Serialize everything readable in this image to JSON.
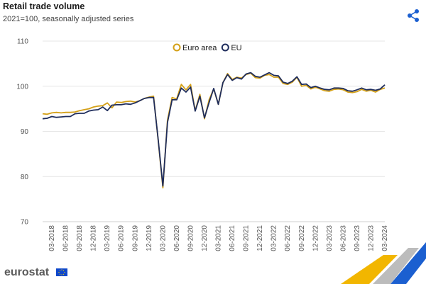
{
  "header": {
    "title": "Retail trade volume",
    "subtitle": "2021=100, seasonally adjusted series"
  },
  "brand": {
    "name": "eurostat"
  },
  "icons": {
    "share": "share-icon",
    "flag": "eu-flag-icon"
  },
  "chart_data": {
    "type": "line",
    "ylim": [
      70,
      110
    ],
    "yticks": [
      70,
      80,
      90,
      100,
      110
    ],
    "xticks": [
      "03-2018",
      "06-2018",
      "09-2018",
      "12-2018",
      "03-2019",
      "06-2019",
      "09-2019",
      "12-2019",
      "03-2020",
      "06-2020",
      "09-2020",
      "12-2020",
      "03-2021",
      "06-2021",
      "09-2021",
      "12-2021",
      "03-2022",
      "06-2022",
      "09-2022",
      "12-2022",
      "03-2023",
      "06-2023",
      "09-2023",
      "12-2023",
      "03-2024"
    ],
    "x": [
      "01-2018",
      "02-2018",
      "03-2018",
      "04-2018",
      "05-2018",
      "06-2018",
      "07-2018",
      "08-2018",
      "09-2018",
      "10-2018",
      "11-2018",
      "12-2018",
      "01-2019",
      "02-2019",
      "03-2019",
      "04-2019",
      "05-2019",
      "06-2019",
      "07-2019",
      "08-2019",
      "09-2019",
      "10-2019",
      "11-2019",
      "12-2019",
      "01-2020",
      "02-2020",
      "03-2020",
      "04-2020",
      "05-2020",
      "06-2020",
      "07-2020",
      "08-2020",
      "09-2020",
      "10-2020",
      "11-2020",
      "12-2020",
      "01-2021",
      "02-2021",
      "03-2021",
      "04-2021",
      "05-2021",
      "06-2021",
      "07-2021",
      "08-2021",
      "09-2021",
      "10-2021",
      "11-2021",
      "12-2021",
      "01-2022",
      "02-2022",
      "03-2022",
      "04-2022",
      "05-2022",
      "06-2022",
      "07-2022",
      "08-2022",
      "09-2022",
      "10-2022",
      "11-2022",
      "12-2022",
      "01-2023",
      "02-2023",
      "03-2023",
      "04-2023",
      "05-2023",
      "06-2023",
      "07-2023",
      "08-2023",
      "09-2023",
      "10-2023",
      "11-2023",
      "12-2023",
      "01-2024",
      "02-2024",
      "03-2024"
    ],
    "grid": true,
    "legend_position": "top-center",
    "series": [
      {
        "name": "Euro area",
        "color": "#d4a017",
        "values": [
          93.9,
          93.8,
          94.1,
          94.2,
          94.1,
          94.2,
          94.2,
          94.3,
          94.6,
          94.8,
          95.0,
          95.4,
          95.6,
          95.7,
          96.3,
          95.2,
          96.5,
          96.4,
          96.6,
          96.7,
          96.5,
          96.8,
          97.3,
          97.6,
          97.8,
          88.0,
          77.5,
          92.5,
          97.5,
          97.2,
          100.4,
          99.2,
          100.4,
          94.6,
          98.2,
          92.8,
          97.0,
          99.4,
          96.0,
          100.8,
          102.8,
          101.5,
          102.0,
          101.8,
          102.6,
          102.9,
          101.9,
          101.8,
          102.4,
          102.6,
          102.0,
          102.0,
          100.6,
          100.4,
          100.9,
          102.0,
          100.0,
          100.2,
          99.4,
          99.8,
          99.4,
          99.0,
          98.9,
          99.3,
          99.4,
          99.2,
          98.7,
          98.6,
          98.8,
          99.3,
          98.9,
          99.1,
          98.7,
          99.3,
          99.6
        ]
      },
      {
        "name": "EU",
        "color": "#1f2d5c",
        "values": [
          92.8,
          92.9,
          93.3,
          93.1,
          93.2,
          93.3,
          93.3,
          93.9,
          94.0,
          94.0,
          94.5,
          94.7,
          94.8,
          95.4,
          94.6,
          95.8,
          95.9,
          95.9,
          96.1,
          96.0,
          96.3,
          96.8,
          97.3,
          97.5,
          97.5,
          88.2,
          77.9,
          92.0,
          97.0,
          97.0,
          99.6,
          98.7,
          99.8,
          94.5,
          97.8,
          93.0,
          96.4,
          99.5,
          96.0,
          100.8,
          102.6,
          101.3,
          101.9,
          101.6,
          102.7,
          103.0,
          102.2,
          102.0,
          102.5,
          103.0,
          102.4,
          102.3,
          100.9,
          100.6,
          101.1,
          102.1,
          100.4,
          100.5,
          99.7,
          100.0,
          99.6,
          99.3,
          99.2,
          99.6,
          99.6,
          99.5,
          99.0,
          98.9,
          99.2,
          99.6,
          99.2,
          99.3,
          99.1,
          99.4,
          100.3
        ]
      }
    ]
  }
}
